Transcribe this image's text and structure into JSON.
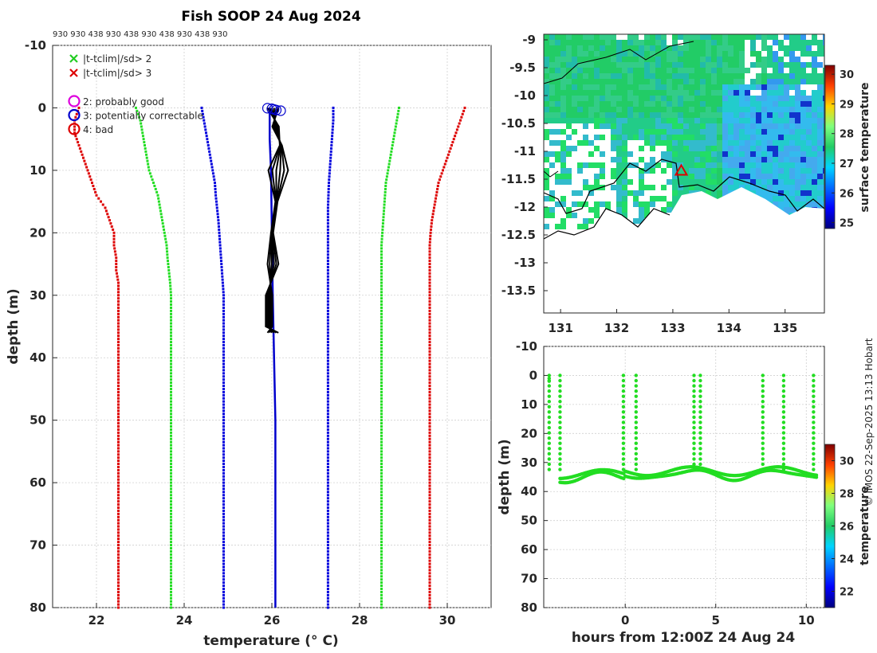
{
  "title": "Fish SOOP 24 Aug 2024",
  "top_labels": "930 930 438 930 438 930 438 930 438 930",
  "credit": "© IMOS 22-Sep-2025 13:13 Hobart",
  "chart_data": [
    {
      "type": "line",
      "name": "temperature profile",
      "xlabel": "temperature (° C)",
      "ylabel": "depth (m)",
      "xlim": [
        21,
        31
      ],
      "ylim": [
        80,
        -10
      ],
      "xticks": [
        22,
        24,
        26,
        28,
        30
      ],
      "yticks": [
        -10,
        0,
        10,
        20,
        30,
        40,
        50,
        60,
        70,
        80
      ],
      "legend_flags": [
        {
          "label": "|t-tclim|/sd> 2",
          "color": "#22cc22",
          "marker": "x"
        },
        {
          "label": "|t-tclim|/sd> 3",
          "color": "#dd0000",
          "marker": "x"
        }
      ],
      "legend_qc": [
        {
          "label": "2: probably good",
          "color": "#dd00dd",
          "marker": "o"
        },
        {
          "label": "3: potentially correctable",
          "color": "#0000cc",
          "marker": "o"
        },
        {
          "label": "4: bad",
          "color": "#dd0000",
          "marker": "o"
        }
      ],
      "clim_depth": [
        0,
        2,
        4,
        6,
        8,
        10,
        12,
        14,
        16,
        18,
        20,
        22,
        24,
        26,
        28,
        30,
        35,
        40,
        50,
        60,
        70,
        80
      ],
      "series": [
        {
          "name": "clim -3sd",
          "color": "#dd0000",
          "values": [
            21.6,
            21.5,
            21.5,
            21.6,
            21.7,
            21.8,
            21.9,
            22.0,
            22.2,
            22.3,
            22.4,
            22.4,
            22.45,
            22.45,
            22.5,
            22.5,
            22.5,
            22.5,
            22.5,
            22.5,
            22.5,
            22.5
          ]
        },
        {
          "name": "clim -2sd",
          "color": "#22dd22",
          "values": [
            22.9,
            23.0,
            23.05,
            23.1,
            23.15,
            23.2,
            23.3,
            23.4,
            23.45,
            23.5,
            23.55,
            23.6,
            23.62,
            23.65,
            23.68,
            23.7,
            23.7,
            23.7,
            23.7,
            23.7,
            23.7,
            23.7
          ]
        },
        {
          "name": "clim -1sd",
          "color": "#0000dd",
          "values": [
            24.4,
            24.45,
            24.5,
            24.55,
            24.6,
            24.65,
            24.7,
            24.72,
            24.75,
            24.78,
            24.8,
            24.82,
            24.84,
            24.86,
            24.88,
            24.9,
            24.9,
            24.9,
            24.9,
            24.9,
            24.9,
            24.9
          ]
        },
        {
          "name": "clim +1sd",
          "color": "#0000dd",
          "values": [
            27.4,
            27.4,
            27.38,
            27.36,
            27.34,
            27.32,
            27.3,
            27.29,
            27.28,
            27.28,
            27.28,
            27.28,
            27.28,
            27.28,
            27.28,
            27.28,
            27.28,
            27.28,
            27.28,
            27.28,
            27.28,
            27.28
          ]
        },
        {
          "name": "clim +2sd",
          "color": "#22dd22",
          "values": [
            28.9,
            28.85,
            28.8,
            28.75,
            28.7,
            28.65,
            28.6,
            28.58,
            28.56,
            28.54,
            28.52,
            28.5,
            28.5,
            28.5,
            28.5,
            28.5,
            28.5,
            28.5,
            28.5,
            28.5,
            28.5,
            28.5
          ]
        },
        {
          "name": "clim +3sd",
          "color": "#dd0000",
          "values": [
            30.4,
            30.3,
            30.2,
            30.1,
            30.0,
            29.9,
            29.8,
            29.75,
            29.7,
            29.65,
            29.62,
            29.6,
            29.6,
            29.6,
            29.6,
            29.6,
            29.6,
            29.6,
            29.6,
            29.6,
            29.6,
            29.6
          ]
        }
      ],
      "profile": {
        "name": "observed",
        "color": "#000000",
        "depth": [
          0,
          3,
          6,
          10,
          15,
          20,
          25,
          30,
          35,
          36
        ],
        "temperature": [
          26.0,
          26.1,
          26.2,
          26.1,
          26.1,
          26.0,
          26.0,
          25.95,
          25.95,
          26.0
        ]
      },
      "profile_qc": {
        "name": "qc profile",
        "color": "#0000cc",
        "depth": [
          0,
          5,
          10,
          20,
          30,
          40,
          50,
          60,
          70,
          80
        ],
        "temperature": [
          25.95,
          25.95,
          25.98,
          26.0,
          26.02,
          26.05,
          26.08,
          26.08,
          26.08,
          26.08
        ]
      },
      "qc_points": [
        25.9,
        26.0,
        26.05,
        26.1,
        26.2
      ]
    },
    {
      "type": "heatmap",
      "name": "surface temperature map",
      "xlim": [
        130.7,
        135.7
      ],
      "ylim": [
        -13.9,
        -8.9
      ],
      "xticks": [
        131,
        132,
        133,
        134,
        135
      ],
      "yticks": [
        -9,
        -9.5,
        -10,
        -10.5,
        -11,
        -11.5,
        -12,
        -12.5,
        -13,
        -13.5
      ],
      "yticklabels": [
        "-9",
        "-9.5",
        "-10",
        "-10.5",
        "-11",
        "-11.5",
        "-12",
        "-12.5",
        "-13",
        "-13.5"
      ],
      "colorbar_label": "surface temperature",
      "colorbar_range": [
        24.8,
        30.3
      ],
      "colorbar_ticks": [
        25,
        26,
        27,
        28,
        29,
        30
      ],
      "marker": {
        "lon": 133.15,
        "lat": -11.35,
        "color": "#dd0000"
      }
    },
    {
      "type": "scatter",
      "name": "depth time series",
      "xlabel": "hours from 12:00Z 24 Aug 24",
      "ylabel": "depth (m)",
      "xlim": [
        -4.5,
        11
      ],
      "ylim": [
        80,
        -10
      ],
      "xticks": [
        0,
        5,
        10
      ],
      "yticks": [
        -10,
        0,
        10,
        20,
        30,
        40,
        50,
        60,
        70,
        80
      ],
      "colorbar_label": "temperature",
      "colorbar_range": [
        21,
        31
      ],
      "colorbar_ticks": [
        22,
        24,
        26,
        28,
        30
      ],
      "color": "#22dd22",
      "spikes_hours": [
        -4.2,
        -3.6,
        -0.1,
        0.6,
        3.8,
        4.15,
        7.6,
        8.75,
        10.4
      ]
    }
  ]
}
